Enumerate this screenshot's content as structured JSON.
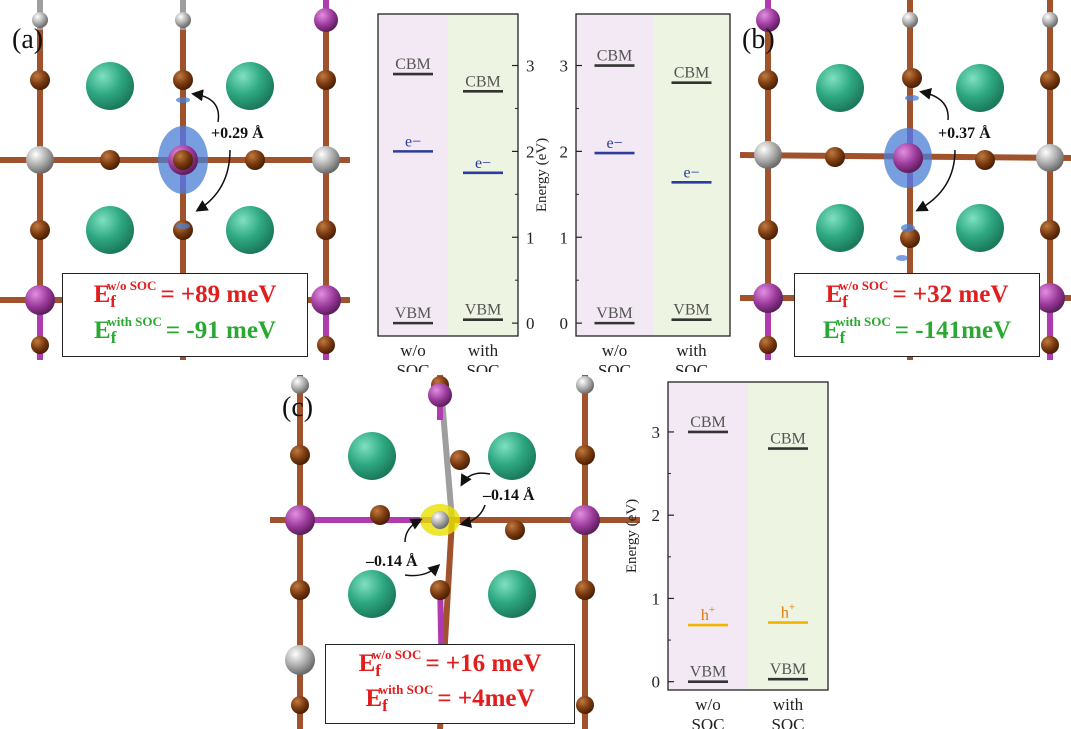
{
  "panels": {
    "a": {
      "letter": "(a)",
      "shift": "+0.29 Å",
      "ef_wo_soc": {
        "prefix": "E",
        "sub": "f",
        "sup": "w/o SOC",
        "value": "= +89 meV"
      },
      "ef_with_soc": {
        "prefix": "E",
        "sub": "f",
        "sup": "with SOC",
        "value": "= -91 meV"
      }
    },
    "b": {
      "letter": "(b)",
      "shift": "+0.37 Å",
      "ef_wo_soc": {
        "prefix": "E",
        "sub": "f",
        "sup": "w/o SOC",
        "value": "= +32 meV"
      },
      "ef_with_soc": {
        "prefix": "E",
        "sub": "f",
        "sup": "with SOC",
        "value": "= -141meV"
      }
    },
    "c": {
      "letter": "(c)",
      "shift_top": "–0.14 Å",
      "shift_left": "–0.14 Å",
      "ef_wo_soc": {
        "prefix": "E",
        "sub": "f",
        "sup": "w/o SOC",
        "value": "= +16 meV"
      },
      "ef_with_soc": {
        "prefix": "E",
        "sub": "f",
        "sup": "with SOC",
        "value": "= +4meV"
      }
    }
  },
  "colors": {
    "wo_soc_bg": "#f3e9f4",
    "with_soc_bg": "#edf4e2",
    "band_edge": "#333333",
    "electron": "#2b3d9c",
    "hole": "#f2b400",
    "hole_text": "#e07a00",
    "cs_atom": "#2ea882",
    "br_atom": "#7a3a10",
    "pb_atom": "#9b3a9b",
    "sn_atom": "#9e9e9e",
    "electron_density": "#4a7fd6",
    "hole_density": "#e8e000",
    "ef_wo": "#e11d1d",
    "ef_with": "#2aa832"
  },
  "chart_data": [
    {
      "type": "bar",
      "ylabel": "",
      "yticks": [
        0,
        1,
        2,
        3
      ],
      "ylim": [
        -0.15,
        3.6
      ],
      "axis_side": "right",
      "categories": [
        "w/o\nSOC",
        "with\nSOC"
      ],
      "levels": [
        {
          "column": 0,
          "label": "CBM",
          "energy": 2.9,
          "kind": "edge"
        },
        {
          "column": 0,
          "label": "e−",
          "energy": 2.0,
          "kind": "electron"
        },
        {
          "column": 0,
          "label": "VBM",
          "energy": 0.0,
          "kind": "edge"
        },
        {
          "column": 1,
          "label": "CBM",
          "energy": 2.7,
          "kind": "edge"
        },
        {
          "column": 1,
          "label": "e−",
          "energy": 1.75,
          "kind": "electron"
        },
        {
          "column": 1,
          "label": "VBM",
          "energy": 0.04,
          "kind": "edge"
        }
      ]
    },
    {
      "type": "bar",
      "ylabel": "Energy (eV)",
      "yticks": [
        0,
        1,
        2,
        3
      ],
      "ylim": [
        -0.15,
        3.6
      ],
      "axis_side": "left",
      "categories": [
        "w/o\nSOC",
        "with\nSOC"
      ],
      "levels": [
        {
          "column": 0,
          "label": "CBM",
          "energy": 3.0,
          "kind": "edge"
        },
        {
          "column": 0,
          "label": "e−",
          "energy": 1.98,
          "kind": "electron"
        },
        {
          "column": 0,
          "label": "VBM",
          "energy": 0.0,
          "kind": "edge"
        },
        {
          "column": 1,
          "label": "CBM",
          "energy": 2.8,
          "kind": "edge"
        },
        {
          "column": 1,
          "label": "e−",
          "energy": 1.64,
          "kind": "electron"
        },
        {
          "column": 1,
          "label": "VBM",
          "energy": 0.04,
          "kind": "edge"
        }
      ]
    },
    {
      "type": "bar",
      "ylabel": "Energy (eV)",
      "yticks": [
        0,
        1,
        2,
        3
      ],
      "ylim": [
        -0.1,
        3.6
      ],
      "axis_side": "left",
      "categories": [
        "w/o\nSOC",
        "with\nSOC"
      ],
      "levels": [
        {
          "column": 0,
          "label": "CBM",
          "energy": 3.0,
          "kind": "edge"
        },
        {
          "column": 0,
          "label": "h+",
          "energy": 0.68,
          "kind": "hole"
        },
        {
          "column": 0,
          "label": "VBM",
          "energy": 0.0,
          "kind": "edge"
        },
        {
          "column": 1,
          "label": "CBM",
          "energy": 2.8,
          "kind": "edge"
        },
        {
          "column": 1,
          "label": "h+",
          "energy": 0.71,
          "kind": "hole"
        },
        {
          "column": 1,
          "label": "VBM",
          "energy": 0.03,
          "kind": "edge"
        }
      ]
    }
  ]
}
